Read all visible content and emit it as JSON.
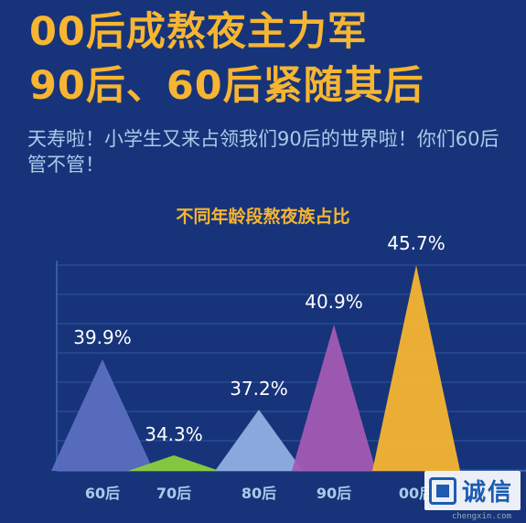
{
  "header": {
    "headline_1": "00后成熬夜主力军",
    "headline_2": "90后、60后紧随其后",
    "subtitle": "天寿啦！小学生又来占领我们90后的世界啦！你们60后管不管！"
  },
  "chart_data": {
    "type": "area",
    "title": "不同年龄段熬夜族占比",
    "categories": [
      "60后",
      "70后",
      "80后",
      "90后",
      "00后"
    ],
    "values": [
      39.9,
      34.3,
      37.2,
      40.9,
      45.7
    ],
    "value_labels": [
      "39.9%",
      "34.3%",
      "37.2%",
      "40.9%",
      "45.7%"
    ],
    "colors": [
      "#5b6fc0",
      "#8bcf3d",
      "#8fb0e2",
      "#a35bb3",
      "#f7b531"
    ],
    "grid": true
  },
  "watermark": {
    "text": "诚信",
    "sub": "chengxin.com"
  }
}
